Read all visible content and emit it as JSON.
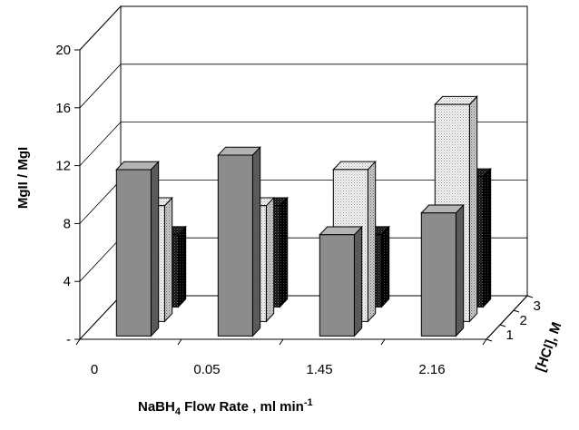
{
  "chart_data": {
    "type": "bar",
    "subtype": "3d-grouped-bar",
    "title": "",
    "xlabel": "NaBH",
    "xlabel_sub": "4",
    "xlabel_rest": " Flow Rate , ml min",
    "xlabel_sup": "-1",
    "ylabel": "MgII / MgI",
    "zlabel": "[HCl], M",
    "ylim": [
      0,
      20
    ],
    "yticks": [
      "-",
      "4",
      "8",
      "12",
      "16",
      "20"
    ],
    "categories": [
      "0",
      "0.05",
      "1.45",
      "2.16"
    ],
    "depth_categories": [
      "1",
      "2",
      "3"
    ],
    "series": [
      {
        "name": "1",
        "values": [
          11.5,
          12.5,
          7.0,
          8.5
        ],
        "color": "#8c8c8c",
        "pattern": "solid"
      },
      {
        "name": "2",
        "values": [
          8.0,
          8.0,
          10.5,
          15.0
        ],
        "color": "#e6e6e6",
        "pattern": "dotted-light"
      },
      {
        "name": "3",
        "values": [
          5.0,
          7.0,
          5.0,
          9.0
        ],
        "color": "#1a1a1a",
        "pattern": "dotted-dark"
      }
    ],
    "grid": true
  }
}
